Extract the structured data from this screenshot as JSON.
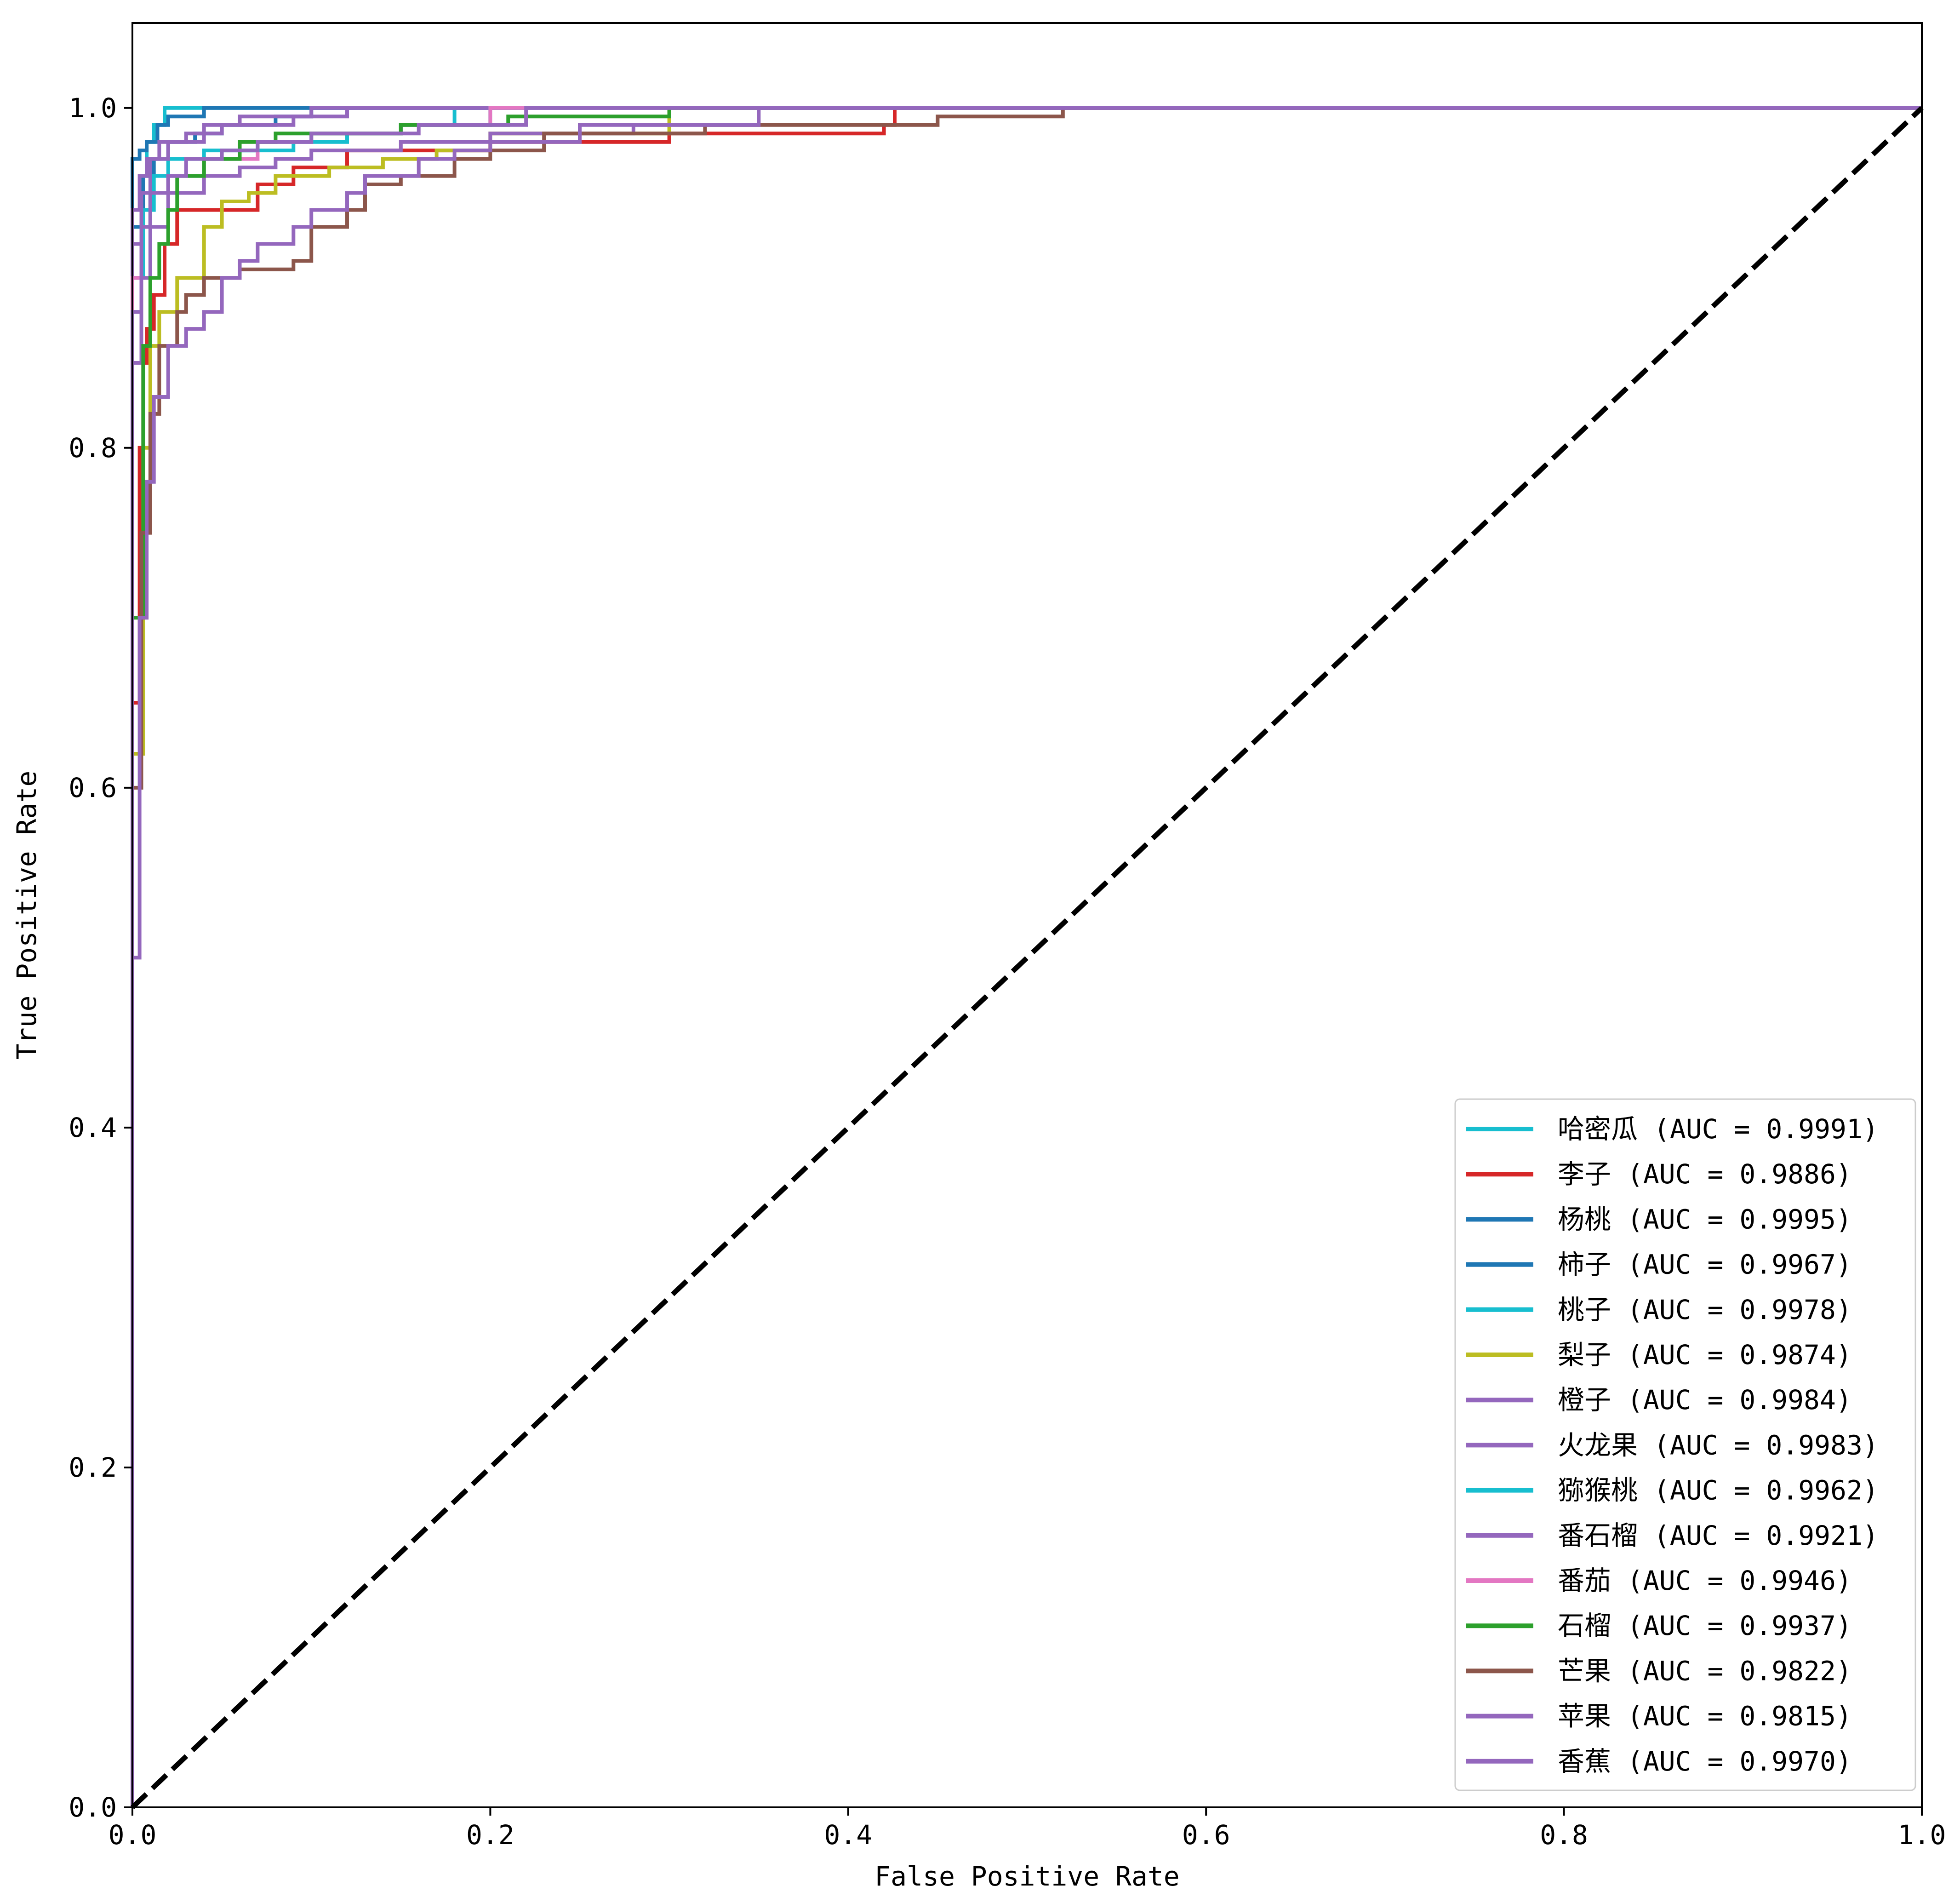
{
  "chart_data": {
    "type": "line",
    "title": "",
    "xlabel": "False Positive Rate",
    "ylabel": "True Positive Rate",
    "xlim": [
      0.0,
      1.0
    ],
    "ylim": [
      0.0,
      1.05
    ],
    "xticks": [
      "0.0",
      "0.2",
      "0.4",
      "0.6",
      "0.8",
      "1.0"
    ],
    "yticks": [
      "0.0",
      "0.2",
      "0.4",
      "0.6",
      "0.8",
      "1.0"
    ],
    "grid": false,
    "legend_position": "lower-right",
    "diagonal": {
      "x": [
        0,
        1
      ],
      "y": [
        0,
        1
      ],
      "color": "#000000",
      "style": "dashed"
    },
    "series": [
      {
        "name": "哈密瓜 (AUC = 0.9991)",
        "color": "#17becf",
        "x": [
          0,
          0.0,
          0.005,
          0.008,
          0.012,
          0.018,
          0.03,
          1.0
        ],
        "y": [
          0,
          0.9,
          0.96,
          0.98,
          0.99,
          1.0,
          1.0,
          1.0
        ]
      },
      {
        "name": "李子 (AUC = 0.9886)",
        "color": "#d62728",
        "x": [
          0,
          0.0,
          0.004,
          0.006,
          0.008,
          0.012,
          0.018,
          0.025,
          0.05,
          0.07,
          0.09,
          0.12,
          0.2,
          0.3,
          0.42,
          0.426,
          1.0
        ],
        "y": [
          0,
          0.65,
          0.8,
          0.85,
          0.87,
          0.89,
          0.92,
          0.94,
          0.94,
          0.955,
          0.965,
          0.975,
          0.98,
          0.985,
          0.99,
          1.0,
          1.0
        ]
      },
      {
        "name": "杨桃 (AUC = 0.9995)",
        "color": "#1f77b4",
        "x": [
          0,
          0.0,
          0.004,
          0.008,
          0.014,
          0.02,
          0.04,
          0.08,
          1.0
        ],
        "y": [
          0,
          0.97,
          0.975,
          0.98,
          0.99,
          0.995,
          1.0,
          1.0,
          1.0
        ]
      },
      {
        "name": "柿子 (AUC = 0.9967)",
        "color": "#1f77b4",
        "x": [
          0,
          0.0,
          0.006,
          0.012,
          0.02,
          0.035,
          0.05,
          0.08,
          0.1,
          1.0
        ],
        "y": [
          0,
          0.93,
          0.96,
          0.97,
          0.98,
          0.985,
          0.99,
          0.995,
          1.0,
          1.0
        ]
      },
      {
        "name": "桃子 (AUC = 0.9978)",
        "color": "#17becf",
        "x": [
          0,
          0.0,
          0.006,
          0.012,
          0.02,
          0.04,
          0.07,
          0.1,
          0.15,
          0.18,
          1.0
        ],
        "y": [
          0,
          0.9,
          0.94,
          0.96,
          0.97,
          0.975,
          0.98,
          0.985,
          0.99,
          1.0,
          1.0
        ]
      },
      {
        "name": "梨子 (AUC = 0.9874)",
        "color": "#bcbd22",
        "x": [
          0,
          0.0,
          0.006,
          0.01,
          0.015,
          0.025,
          0.04,
          0.05,
          0.065,
          0.08,
          0.11,
          0.14,
          0.17,
          0.2,
          0.3,
          1.0
        ],
        "y": [
          0,
          0.62,
          0.8,
          0.86,
          0.88,
          0.9,
          0.93,
          0.945,
          0.95,
          0.96,
          0.965,
          0.97,
          0.975,
          0.985,
          1.0,
          1.0
        ]
      },
      {
        "name": "橙子 (AUC = 0.9984)",
        "color": "#9467bd",
        "x": [
          0,
          0.0,
          0.005,
          0.01,
          0.02,
          0.04,
          0.06,
          0.1,
          1.0
        ],
        "y": [
          0,
          0.92,
          0.95,
          0.97,
          0.98,
          0.99,
          0.995,
          1.0,
          1.0
        ]
      },
      {
        "name": "火龙果 (AUC = 0.9983)",
        "color": "#9467bd",
        "x": [
          0,
          0.0,
          0.004,
          0.008,
          0.015,
          0.03,
          0.05,
          0.09,
          0.12,
          1.0
        ],
        "y": [
          0,
          0.94,
          0.96,
          0.97,
          0.98,
          0.985,
          0.99,
          0.995,
          1.0,
          1.0
        ]
      },
      {
        "name": "猕猴桃 (AUC = 0.9962)",
        "color": "#17becf",
        "x": [
          0,
          0.0,
          0.005,
          0.01,
          0.02,
          0.04,
          0.06,
          0.09,
          0.12,
          0.15,
          0.2,
          1.0
        ],
        "y": [
          0,
          0.88,
          0.93,
          0.95,
          0.96,
          0.97,
          0.975,
          0.98,
          0.985,
          0.99,
          1.0,
          1.0
        ]
      },
      {
        "name": "番石榴 (AUC = 0.9921)",
        "color": "#9467bd",
        "x": [
          0,
          0.0,
          0.005,
          0.01,
          0.02,
          0.04,
          0.06,
          0.08,
          0.1,
          0.15,
          0.2,
          0.28,
          0.35,
          1.0
        ],
        "y": [
          0,
          0.85,
          0.9,
          0.93,
          0.95,
          0.96,
          0.965,
          0.97,
          0.975,
          0.98,
          0.985,
          0.99,
          1.0,
          1.0
        ]
      },
      {
        "name": "番茄 (AUC = 0.9946)",
        "color": "#e377c2",
        "x": [
          0,
          0.0,
          0.005,
          0.01,
          0.02,
          0.04,
          0.07,
          0.1,
          0.15,
          0.2,
          1.0
        ],
        "y": [
          0,
          0.9,
          0.93,
          0.95,
          0.96,
          0.97,
          0.98,
          0.985,
          0.99,
          1.0,
          1.0
        ]
      },
      {
        "name": "石榴 (AUC = 0.9937)",
        "color": "#2ca02c",
        "x": [
          0,
          0.0,
          0.006,
          0.01,
          0.015,
          0.02,
          0.025,
          0.04,
          0.06,
          0.08,
          0.15,
          0.21,
          0.3,
          1.0
        ],
        "y": [
          0,
          0.7,
          0.86,
          0.9,
          0.92,
          0.94,
          0.96,
          0.97,
          0.98,
          0.985,
          0.99,
          0.995,
          1.0,
          1.0
        ]
      },
      {
        "name": "芒果 (AUC = 0.9822)",
        "color": "#8c564b",
        "x": [
          0,
          0.0,
          0.005,
          0.01,
          0.015,
          0.025,
          0.03,
          0.04,
          0.06,
          0.09,
          0.1,
          0.12,
          0.13,
          0.15,
          0.18,
          0.2,
          0.23,
          0.32,
          0.45,
          0.52,
          1.0
        ],
        "y": [
          0,
          0.6,
          0.75,
          0.82,
          0.86,
          0.88,
          0.89,
          0.9,
          0.905,
          0.91,
          0.93,
          0.94,
          0.955,
          0.96,
          0.97,
          0.975,
          0.985,
          0.99,
          0.995,
          1.0,
          1.0
        ]
      },
      {
        "name": "苹果 (AUC = 0.9815)",
        "color": "#9467bd",
        "x": [
          0,
          0.0,
          0.004,
          0.008,
          0.012,
          0.02,
          0.03,
          0.04,
          0.05,
          0.06,
          0.07,
          0.09,
          0.1,
          0.12,
          0.13,
          0.16,
          0.18,
          0.2,
          0.25,
          0.35,
          1.0
        ],
        "y": [
          0,
          0.5,
          0.7,
          0.78,
          0.83,
          0.86,
          0.87,
          0.88,
          0.9,
          0.91,
          0.92,
          0.93,
          0.94,
          0.95,
          0.96,
          0.97,
          0.975,
          0.98,
          0.99,
          1.0,
          1.0
        ]
      },
      {
        "name": "香蕉 (AUC = 0.9970)",
        "color": "#9467bd",
        "x": [
          0,
          0.0,
          0.005,
          0.01,
          0.02,
          0.03,
          0.05,
          0.07,
          0.1,
          0.16,
          0.22,
          1.0
        ],
        "y": [
          0,
          0.88,
          0.93,
          0.95,
          0.96,
          0.97,
          0.975,
          0.98,
          0.985,
          0.99,
          1.0,
          1.0
        ]
      }
    ]
  }
}
